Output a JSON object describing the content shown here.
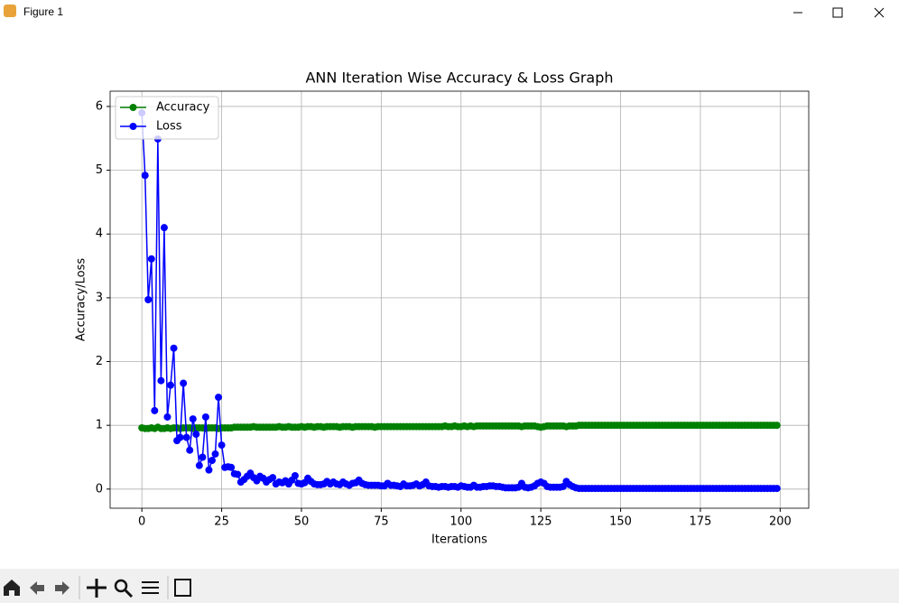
{
  "window": {
    "title": "Figure 1"
  },
  "chart_data": {
    "type": "line",
    "title": "ANN Iteration Wise Accuracy & Loss Graph",
    "xlabel": "Iterations",
    "ylabel": "Accuracy/Loss",
    "x": [
      0,
      1,
      2,
      3,
      4,
      5,
      6,
      7,
      8,
      9,
      10,
      11,
      12,
      13,
      14,
      15,
      16,
      17,
      18,
      19,
      20,
      21,
      22,
      23,
      24,
      25,
      26,
      27,
      28,
      29,
      30,
      31,
      32,
      33,
      34,
      35,
      36,
      37,
      38,
      39,
      40,
      41,
      42,
      43,
      44,
      45,
      46,
      47,
      48,
      49,
      50,
      51,
      52,
      53,
      54,
      55,
      56,
      57,
      58,
      59,
      60,
      61,
      62,
      63,
      64,
      65,
      66,
      67,
      68,
      69,
      70,
      71,
      72,
      73,
      74,
      75,
      76,
      77,
      78,
      79,
      80,
      81,
      82,
      83,
      84,
      85,
      86,
      87,
      88,
      89,
      90,
      91,
      92,
      93,
      94,
      95,
      96,
      97,
      98,
      99,
      100,
      101,
      102,
      103,
      104,
      105,
      106,
      107,
      108,
      109,
      110,
      111,
      112,
      113,
      114,
      115,
      116,
      117,
      118,
      119,
      120,
      121,
      122,
      123,
      124,
      125,
      126,
      127,
      128,
      129,
      130,
      131,
      132,
      133,
      134,
      135,
      136,
      137,
      138,
      139,
      140,
      141,
      142,
      143,
      144,
      145,
      146,
      147,
      148,
      149,
      150,
      151,
      152,
      153,
      154,
      155,
      156,
      157,
      158,
      159,
      160,
      161,
      162,
      163,
      164,
      165,
      166,
      167,
      168,
      169,
      170,
      171,
      172,
      173,
      174,
      175,
      176,
      177,
      178,
      179,
      180,
      181,
      182,
      183,
      184,
      185,
      186,
      187,
      188,
      189,
      190,
      191,
      192,
      193,
      194,
      195,
      196,
      197,
      198,
      199
    ],
    "series": [
      {
        "name": "Accuracy",
        "color": "#008000",
        "values": [
          0.96,
          0.95,
          0.95,
          0.96,
          0.95,
          0.97,
          0.95,
          0.95,
          0.96,
          0.95,
          0.96,
          0.96,
          0.95,
          0.96,
          0.96,
          0.96,
          0.95,
          0.96,
          0.96,
          0.96,
          0.95,
          0.96,
          0.96,
          0.96,
          0.95,
          0.96,
          0.96,
          0.96,
          0.96,
          0.97,
          0.97,
          0.97,
          0.97,
          0.97,
          0.97,
          0.98,
          0.97,
          0.97,
          0.97,
          0.97,
          0.97,
          0.97,
          0.97,
          0.98,
          0.97,
          0.97,
          0.98,
          0.97,
          0.97,
          0.97,
          0.98,
          0.97,
          0.98,
          0.98,
          0.97,
          0.98,
          0.98,
          0.97,
          0.98,
          0.98,
          0.98,
          0.98,
          0.97,
          0.98,
          0.98,
          0.98,
          0.97,
          0.98,
          0.98,
          0.98,
          0.98,
          0.98,
          0.98,
          0.97,
          0.98,
          0.98,
          0.98,
          0.98,
          0.98,
          0.98,
          0.98,
          0.98,
          0.98,
          0.98,
          0.98,
          0.98,
          0.98,
          0.98,
          0.98,
          0.98,
          0.98,
          0.98,
          0.98,
          0.98,
          0.98,
          0.99,
          0.98,
          0.98,
          0.99,
          0.98,
          0.98,
          0.99,
          0.98,
          0.99,
          0.98,
          0.99,
          0.99,
          0.99,
          0.99,
          0.99,
          0.99,
          0.99,
          0.99,
          0.99,
          0.99,
          0.99,
          0.99,
          0.99,
          0.99,
          0.98,
          0.99,
          0.99,
          0.99,
          0.99,
          0.98,
          0.97,
          0.98,
          0.99,
          0.99,
          0.99,
          0.99,
          0.99,
          0.99,
          0.98,
          0.99,
          0.99,
          0.99,
          1.0,
          1.0,
          1.0,
          1.0,
          1.0,
          1.0,
          1.0,
          1.0,
          1.0,
          1.0,
          1.0,
          1.0,
          1.0,
          1.0,
          1.0,
          1.0,
          1.0,
          1.0,
          1.0,
          1.0,
          1.0,
          1.0,
          1.0,
          1.0,
          1.0,
          1.0,
          1.0,
          1.0,
          1.0,
          1.0,
          1.0,
          1.0,
          1.0,
          1.0,
          1.0,
          1.0,
          1.0,
          1.0,
          1.0,
          1.0,
          1.0,
          1.0,
          1.0,
          1.0,
          1.0,
          1.0,
          1.0,
          1.0,
          1.0,
          1.0,
          1.0,
          1.0,
          1.0,
          1.0,
          1.0,
          1.0,
          1.0,
          1.0,
          1.0,
          1.0,
          1.0,
          1.0,
          1.0
        ]
      },
      {
        "name": "Loss",
        "color": "#0000ff",
        "values": [
          5.9,
          4.92,
          2.97,
          3.61,
          1.23,
          5.49,
          1.7,
          4.1,
          1.13,
          1.63,
          2.21,
          0.76,
          0.81,
          1.66,
          0.81,
          0.61,
          1.1,
          0.86,
          0.37,
          0.5,
          1.13,
          0.3,
          0.45,
          0.55,
          1.44,
          0.69,
          0.34,
          0.35,
          0.34,
          0.24,
          0.23,
          0.11,
          0.15,
          0.2,
          0.25,
          0.18,
          0.13,
          0.2,
          0.17,
          0.11,
          0.15,
          0.18,
          0.08,
          0.11,
          0.1,
          0.13,
          0.08,
          0.14,
          0.21,
          0.09,
          0.08,
          0.1,
          0.17,
          0.12,
          0.08,
          0.07,
          0.07,
          0.08,
          0.12,
          0.08,
          0.11,
          0.08,
          0.07,
          0.11,
          0.08,
          0.06,
          0.09,
          0.1,
          0.14,
          0.09,
          0.07,
          0.06,
          0.06,
          0.06,
          0.06,
          0.05,
          0.05,
          0.09,
          0.06,
          0.06,
          0.05,
          0.04,
          0.08,
          0.05,
          0.05,
          0.06,
          0.08,
          0.05,
          0.07,
          0.11,
          0.05,
          0.04,
          0.04,
          0.03,
          0.04,
          0.04,
          0.03,
          0.04,
          0.04,
          0.03,
          0.05,
          0.04,
          0.03,
          0.03,
          0.06,
          0.03,
          0.03,
          0.04,
          0.04,
          0.05,
          0.05,
          0.04,
          0.04,
          0.03,
          0.02,
          0.02,
          0.02,
          0.02,
          0.03,
          0.09,
          0.03,
          0.02,
          0.03,
          0.05,
          0.09,
          0.11,
          0.09,
          0.04,
          0.03,
          0.03,
          0.03,
          0.03,
          0.04,
          0.12,
          0.07,
          0.04,
          0.02,
          0.01,
          0.01,
          0.01,
          0.01,
          0.01,
          0.01,
          0.01,
          0.01,
          0.01,
          0.01,
          0.01,
          0.01,
          0.01,
          0.01,
          0.01,
          0.01,
          0.01,
          0.01,
          0.01,
          0.01,
          0.01,
          0.01,
          0.01,
          0.01,
          0.01,
          0.01,
          0.01,
          0.01,
          0.01,
          0.01,
          0.01,
          0.01,
          0.01,
          0.01,
          0.01,
          0.01,
          0.01,
          0.01,
          0.01,
          0.01,
          0.01,
          0.01,
          0.01,
          0.01,
          0.01,
          0.01,
          0.01,
          0.01,
          0.01,
          0.01,
          0.01,
          0.01,
          0.01,
          0.01,
          0.01,
          0.01,
          0.01,
          0.01,
          0.01,
          0.01,
          0.01,
          0.01,
          0.01
        ]
      }
    ],
    "xlim": [
      -9.95,
      208.95
    ],
    "xticks": [
      0,
      25,
      50,
      75,
      100,
      125,
      150,
      175,
      200
    ],
    "ylim": [
      -0.3,
      6.24
    ],
    "yticks": [
      0,
      1,
      2,
      3,
      4,
      5,
      6
    ],
    "grid": true,
    "legend": "upper-left"
  }
}
